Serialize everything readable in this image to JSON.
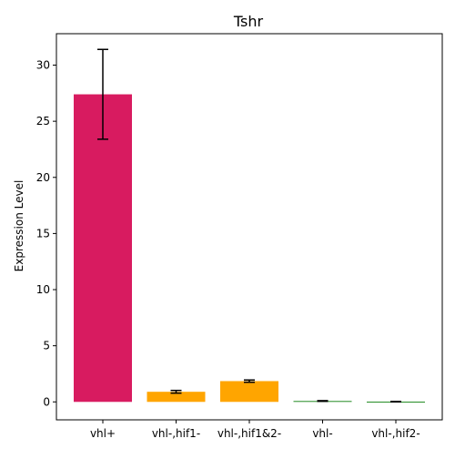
{
  "chart_data": {
    "type": "bar",
    "title": "Tshr",
    "xlabel": "",
    "ylabel": "Expression Level",
    "categories": [
      "vhl+",
      "vhl-,hif1-",
      "vhl-,hif1&2-",
      "vhl-",
      "vhl-,hif2-"
    ],
    "values": [
      27.4,
      0.9,
      1.85,
      0.08,
      0.02
    ],
    "errors": [
      4.0,
      0.12,
      0.1,
      0.03,
      0.02
    ],
    "bar_colors": [
      "#d81b60",
      "#ffa500",
      "#ffa500",
      "#228b22",
      "#228b22"
    ],
    "ylim": [
      -1.6,
      32.8
    ],
    "yticks": [
      0,
      5,
      10,
      15,
      20,
      25,
      30
    ],
    "grid": false,
    "legend": "none"
  }
}
